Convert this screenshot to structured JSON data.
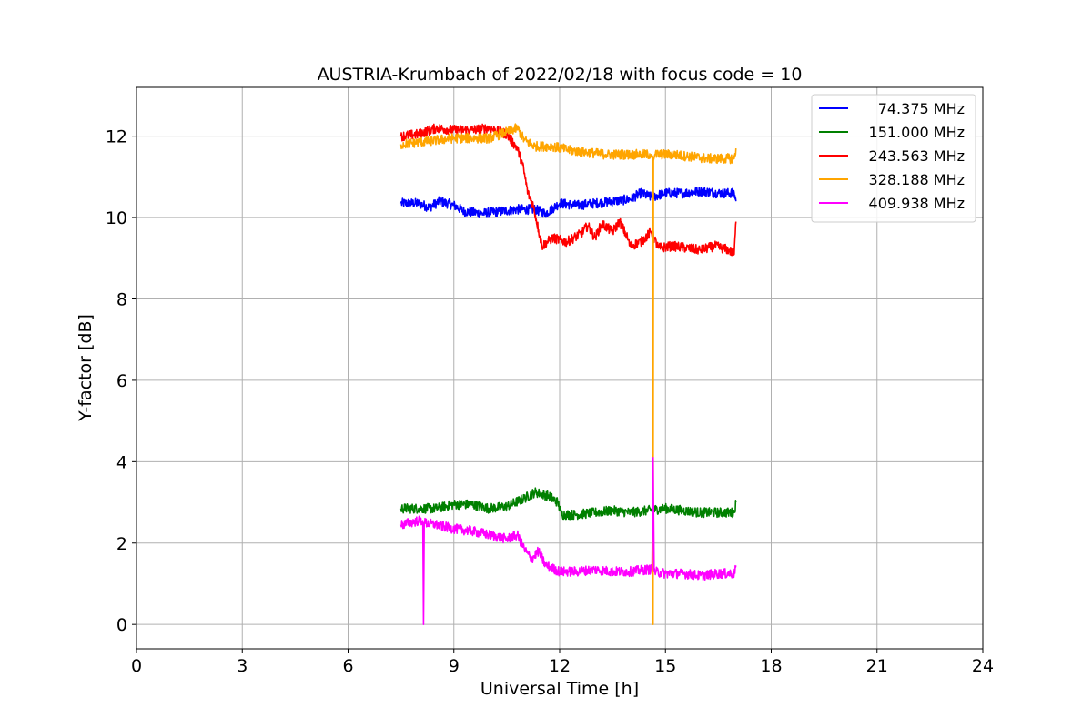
{
  "chart_data": {
    "type": "line",
    "title": "AUSTRIA-Krumbach of 2022/02/18 with focus code = 10",
    "xlabel": "Universal Time [h]",
    "ylabel": "Y-factor [dB]",
    "xlim": [
      0,
      24
    ],
    "ylim": [
      -0.6,
      13.2
    ],
    "xticks": [
      0,
      3,
      6,
      9,
      12,
      15,
      18,
      21,
      24
    ],
    "yticks": [
      0,
      2,
      4,
      6,
      8,
      10,
      12
    ],
    "grid": true,
    "legend_position": "top-right",
    "noise_amplitude_db": 0.12,
    "series": [
      {
        "name": "74.375 MHz",
        "color": "#0000ff",
        "points": [
          [
            7.5,
            10.35
          ],
          [
            8.0,
            10.35
          ],
          [
            8.3,
            10.25
          ],
          [
            8.6,
            10.4
          ],
          [
            9.0,
            10.3
          ],
          [
            9.3,
            10.15
          ],
          [
            9.8,
            10.1
          ],
          [
            10.3,
            10.15
          ],
          [
            10.8,
            10.2
          ],
          [
            11.3,
            10.2
          ],
          [
            11.6,
            10.1
          ],
          [
            12.0,
            10.35
          ],
          [
            12.5,
            10.3
          ],
          [
            13.0,
            10.35
          ],
          [
            13.5,
            10.4
          ],
          [
            14.0,
            10.45
          ],
          [
            14.3,
            10.6
          ],
          [
            14.6,
            10.5
          ],
          [
            15.0,
            10.6
          ],
          [
            15.5,
            10.6
          ],
          [
            16.0,
            10.65
          ],
          [
            16.5,
            10.6
          ],
          [
            16.95,
            10.6
          ],
          [
            17.0,
            10.4
          ]
        ]
      },
      {
        "name": "151.000 MHz",
        "color": "#008000",
        "points": [
          [
            7.5,
            2.85
          ],
          [
            8.0,
            2.85
          ],
          [
            8.5,
            2.85
          ],
          [
            9.0,
            2.95
          ],
          [
            9.5,
            2.95
          ],
          [
            10.0,
            2.85
          ],
          [
            10.5,
            2.9
          ],
          [
            11.0,
            3.1
          ],
          [
            11.3,
            3.25
          ],
          [
            11.7,
            3.15
          ],
          [
            11.95,
            3.0
          ],
          [
            12.05,
            2.7
          ],
          [
            12.5,
            2.7
          ],
          [
            13.0,
            2.75
          ],
          [
            13.5,
            2.8
          ],
          [
            14.0,
            2.75
          ],
          [
            14.5,
            2.8
          ],
          [
            15.0,
            2.85
          ],
          [
            15.5,
            2.8
          ],
          [
            16.0,
            2.75
          ],
          [
            16.5,
            2.75
          ],
          [
            16.95,
            2.75
          ],
          [
            17.0,
            3.0
          ]
        ]
      },
      {
        "name": "243.563 MHz",
        "color": "#ff0000",
        "points": [
          [
            7.5,
            12.0
          ],
          [
            8.0,
            12.05
          ],
          [
            8.5,
            12.2
          ],
          [
            9.0,
            12.15
          ],
          [
            9.5,
            12.15
          ],
          [
            10.0,
            12.2
          ],
          [
            10.5,
            12.05
          ],
          [
            10.8,
            11.7
          ],
          [
            10.95,
            11.3
          ],
          [
            11.1,
            10.6
          ],
          [
            11.25,
            10.3
          ],
          [
            11.4,
            9.7
          ],
          [
            11.5,
            9.3
          ],
          [
            11.8,
            9.5
          ],
          [
            12.2,
            9.4
          ],
          [
            12.6,
            9.6
          ],
          [
            12.8,
            9.8
          ],
          [
            13.0,
            9.5
          ],
          [
            13.2,
            9.85
          ],
          [
            13.5,
            9.65
          ],
          [
            13.7,
            9.9
          ],
          [
            13.9,
            9.55
          ],
          [
            14.0,
            9.3
          ],
          [
            14.3,
            9.4
          ],
          [
            14.6,
            9.65
          ],
          [
            14.8,
            9.25
          ],
          [
            15.2,
            9.3
          ],
          [
            15.6,
            9.25
          ],
          [
            16.0,
            9.2
          ],
          [
            16.4,
            9.3
          ],
          [
            16.8,
            9.2
          ],
          [
            16.95,
            9.1
          ],
          [
            17.0,
            9.9
          ]
        ]
      },
      {
        "name": "328.188 MHz",
        "color": "#ffa500",
        "points": [
          [
            7.5,
            11.8
          ],
          [
            8.0,
            11.85
          ],
          [
            8.5,
            11.9
          ],
          [
            9.0,
            11.95
          ],
          [
            9.5,
            11.95
          ],
          [
            10.0,
            11.95
          ],
          [
            10.5,
            12.1
          ],
          [
            10.8,
            12.2
          ],
          [
            11.0,
            11.9
          ],
          [
            11.3,
            11.75
          ],
          [
            11.8,
            11.75
          ],
          [
            12.3,
            11.65
          ],
          [
            12.8,
            11.6
          ],
          [
            13.3,
            11.55
          ],
          [
            13.8,
            11.55
          ],
          [
            14.3,
            11.55
          ],
          [
            14.6,
            11.55
          ],
          [
            14.64,
            11.5
          ],
          [
            14.65,
            0.0
          ],
          [
            14.66,
            11.4
          ],
          [
            14.7,
            11.55
          ],
          [
            15.2,
            11.55
          ],
          [
            15.7,
            11.5
          ],
          [
            16.2,
            11.45
          ],
          [
            16.7,
            11.45
          ],
          [
            16.95,
            11.45
          ],
          [
            17.0,
            11.7
          ]
        ]
      },
      {
        "name": "409.938 MHz",
        "color": "#ff00ff",
        "points": [
          [
            7.5,
            2.45
          ],
          [
            8.0,
            2.55
          ],
          [
            8.12,
            2.55
          ],
          [
            8.14,
            0.0
          ],
          [
            8.16,
            2.5
          ],
          [
            8.5,
            2.45
          ],
          [
            9.0,
            2.35
          ],
          [
            9.5,
            2.3
          ],
          [
            10.0,
            2.2
          ],
          [
            10.5,
            2.1
          ],
          [
            10.8,
            2.2
          ],
          [
            11.0,
            1.85
          ],
          [
            11.2,
            1.6
          ],
          [
            11.4,
            1.8
          ],
          [
            11.6,
            1.45
          ],
          [
            12.0,
            1.3
          ],
          [
            12.5,
            1.3
          ],
          [
            13.0,
            1.35
          ],
          [
            13.5,
            1.3
          ],
          [
            14.0,
            1.3
          ],
          [
            14.5,
            1.35
          ],
          [
            14.62,
            1.35
          ],
          [
            14.65,
            4.1
          ],
          [
            14.68,
            1.3
          ],
          [
            15.0,
            1.25
          ],
          [
            15.5,
            1.25
          ],
          [
            16.0,
            1.2
          ],
          [
            16.5,
            1.25
          ],
          [
            16.95,
            1.25
          ],
          [
            17.0,
            1.45
          ]
        ]
      }
    ]
  }
}
